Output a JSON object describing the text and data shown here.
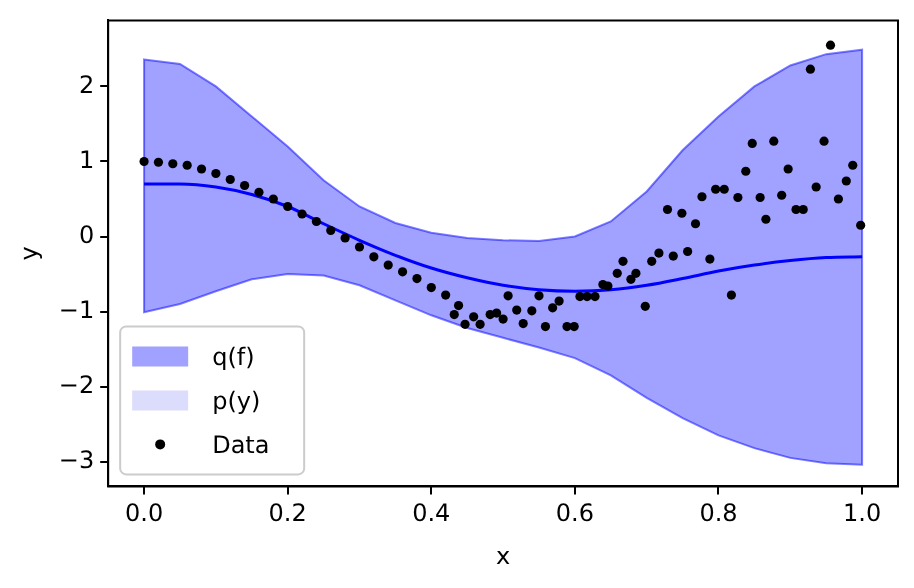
{
  "chart_data": {
    "type": "line",
    "xlabel": "x",
    "ylabel": "y",
    "xlim": [
      -0.05,
      1.05
    ],
    "ylim": [
      -3.33,
      2.88
    ],
    "xticks": [
      {
        "value": 0,
        "label": "0.0"
      },
      {
        "value": 0.2,
        "label": "0.2"
      },
      {
        "value": 0.4,
        "label": "0.4"
      },
      {
        "value": 0.6,
        "label": "0.6"
      },
      {
        "value": 0.8,
        "label": "0.8"
      },
      {
        "value": 1,
        "label": "1.0"
      }
    ],
    "yticks": [
      {
        "value": -3,
        "label": "−3"
      },
      {
        "value": -2,
        "label": "−2"
      },
      {
        "value": -1,
        "label": "−1"
      },
      {
        "value": 0,
        "label": "0"
      },
      {
        "value": 1,
        "label": "1"
      },
      {
        "value": 2,
        "label": "2"
      }
    ],
    "grid": false,
    "legend": "bottom left",
    "series": [
      {
        "name": "q(f)",
        "color": "#0000ff",
        "values": [
          0.7,
          0.7,
          0.66,
          0.56,
          0.4,
          0.17,
          -0.05,
          -0.25,
          -0.42,
          -0.55,
          -0.65,
          -0.71,
          -0.73,
          -0.71,
          -0.65,
          -0.56,
          -0.46,
          -0.38,
          -0.32,
          -0.28,
          -0.27
        ],
        "x": [
          0,
          0.05,
          0.1,
          0.15,
          0.2,
          0.25,
          0.3,
          0.35,
          0.4,
          0.45,
          0.5,
          0.55,
          0.6,
          0.65,
          0.7,
          0.75,
          0.8,
          0.85,
          0.9,
          0.95,
          1.0
        ],
        "lower": [
          -1.01,
          -0.9,
          -0.73,
          -0.57,
          -0.5,
          -0.52,
          -0.65,
          -0.85,
          -1.05,
          -1.22,
          -1.35,
          -1.48,
          -1.62,
          -1.85,
          -2.15,
          -2.42,
          -2.65,
          -2.82,
          -2.95,
          -3.02,
          -3.04
        ],
        "upper": [
          2.36,
          2.3,
          2.0,
          1.6,
          1.2,
          0.75,
          0.4,
          0.18,
          0.05,
          -0.02,
          -0.05,
          -0.06,
          0.0,
          0.2,
          0.6,
          1.15,
          1.6,
          2.0,
          2.28,
          2.43,
          2.49
        ]
      },
      {
        "type": "area",
        "name": "p(y)",
        "color": "#dcdcfc"
      },
      {
        "type": "scatter",
        "name": "Data",
        "color": "#000000",
        "marker": "circle",
        "x": [
          0,
          0.02,
          0.04,
          0.06,
          0.08,
          0.1,
          0.12,
          0.14,
          0.16,
          0.18,
          0.2,
          0.22,
          0.24,
          0.26,
          0.28,
          0.3,
          0.32,
          0.34,
          0.36,
          0.38,
          0.4,
          0.42,
          0.432,
          0.438,
          0.447,
          0.459,
          0.468,
          0.482,
          0.491,
          0.5,
          0.507,
          0.519,
          0.528,
          0.54,
          0.55,
          0.559,
          0.569,
          0.578,
          0.589,
          0.599,
          0.607,
          0.617,
          0.628,
          0.639,
          0.646,
          0.659,
          0.667,
          0.678,
          0.685,
          0.698,
          0.707,
          0.717,
          0.729,
          0.737,
          0.749,
          0.757,
          0.768,
          0.777,
          0.788,
          0.796,
          0.808,
          0.818,
          0.827,
          0.838,
          0.847,
          0.858,
          0.866,
          0.877,
          0.888,
          0.897,
          0.908,
          0.918,
          0.928,
          0.936,
          0.947,
          0.956,
          0.967,
          0.978,
          0.987,
          0.998
        ],
        "values": [
          1.0,
          0.99,
          0.97,
          0.95,
          0.9,
          0.84,
          0.76,
          0.68,
          0.59,
          0.5,
          0.4,
          0.3,
          0.2,
          0.08,
          -0.02,
          -0.14,
          -0.27,
          -0.38,
          -0.47,
          -0.56,
          -0.68,
          -0.78,
          -1.04,
          -0.92,
          -1.17,
          -1.07,
          -1.17,
          -1.04,
          -1.02,
          -1.1,
          -0.79,
          -0.98,
          -1.16,
          -0.99,
          -0.79,
          -1.2,
          -0.95,
          -0.86,
          -1.2,
          -1.2,
          -0.8,
          -0.8,
          -0.8,
          -0.64,
          -0.66,
          -0.49,
          -0.33,
          -0.57,
          -0.49,
          -0.93,
          -0.33,
          -0.22,
          0.36,
          -0.26,
          0.31,
          -0.2,
          0.17,
          0.53,
          -0.3,
          0.63,
          0.63,
          -0.78,
          0.52,
          0.87,
          1.24,
          0.52,
          0.23,
          1.27,
          0.55,
          0.9,
          0.36,
          0.36,
          2.23,
          0.66,
          1.27,
          2.55,
          0.5,
          0.74,
          0.95,
          0.15
        ]
      }
    ]
  }
}
